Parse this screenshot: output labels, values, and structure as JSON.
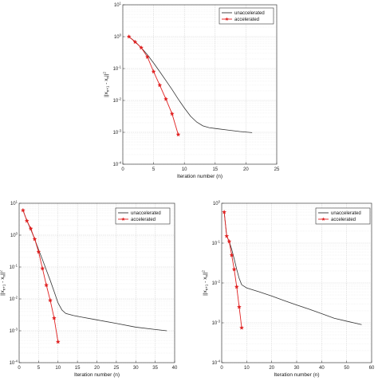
{
  "chart_data": [
    {
      "type": "line",
      "xlabel": "Iteration number (n)",
      "ylabel": "||x_{n+1} - x_n||^2",
      "yscale": "log",
      "xlim": [
        0,
        25
      ],
      "ylim_exp": [
        -4,
        1
      ],
      "xticks": [
        "0",
        "5",
        "10",
        "15",
        "20",
        "25"
      ],
      "yticks": [
        "10^{-4}",
        "10^{-3}",
        "10^{-2}",
        "10^{-1}",
        "10^{0}",
        "10^{1}"
      ],
      "grid": true,
      "legend_position": "top-right",
      "series": [
        {
          "name": "unaccelerated",
          "color": "#333333",
          "marker": "none",
          "x": [
            1,
            2,
            3,
            4,
            5,
            6,
            7,
            8,
            9,
            10,
            11,
            12,
            13,
            14,
            15,
            17,
            19,
            21
          ],
          "y": [
            1.0,
            0.7,
            0.45,
            0.27,
            0.15,
            0.08,
            0.042,
            0.022,
            0.011,
            0.0058,
            0.0032,
            0.0021,
            0.0016,
            0.0014,
            0.00132,
            0.00118,
            0.00106,
            0.00098
          ]
        },
        {
          "name": "accelerated",
          "color": "#e02020",
          "marker": "star",
          "x": [
            1,
            2,
            3,
            4,
            5,
            6,
            7,
            8,
            9
          ],
          "y": [
            1.0,
            0.68,
            0.45,
            0.23,
            0.08,
            0.03,
            0.011,
            0.0038,
            0.00085
          ]
        }
      ]
    },
    {
      "type": "line",
      "xlabel": "Iteration number (n)",
      "ylabel": "||x_{n+1} - x_n||^2",
      "yscale": "log",
      "xlim": [
        0,
        40
      ],
      "ylim_exp": [
        -4,
        1
      ],
      "xticks": [
        "0",
        "5",
        "10",
        "15",
        "20",
        "25",
        "30",
        "35",
        "40"
      ],
      "yticks": [
        "10^{-4}",
        "10^{-3}",
        "10^{-2}",
        "10^{-1}",
        "10^{0}",
        "10^{1}"
      ],
      "grid": true,
      "legend_position": "top-right",
      "series": [
        {
          "name": "unaccelerated",
          "color": "#333333",
          "marker": "none",
          "x": [
            1,
            2,
            3,
            4,
            5,
            6,
            7,
            8,
            9,
            10,
            11,
            12,
            14,
            16,
            20,
            25,
            30,
            35,
            38
          ],
          "y": [
            6.0,
            2.8,
            1.5,
            0.75,
            0.35,
            0.17,
            0.08,
            0.038,
            0.017,
            0.0075,
            0.0045,
            0.0035,
            0.003,
            0.0027,
            0.0022,
            0.0017,
            0.0013,
            0.0011,
            0.001
          ]
        },
        {
          "name": "accelerated",
          "color": "#e02020",
          "marker": "star",
          "x": [
            1,
            2,
            3,
            4,
            5,
            6,
            7,
            8,
            9,
            10
          ],
          "y": [
            6.0,
            2.8,
            1.6,
            0.75,
            0.3,
            0.09,
            0.027,
            0.009,
            0.0025,
            0.00045
          ]
        }
      ]
    },
    {
      "type": "line",
      "xlabel": "Iteration number (n)",
      "ylabel": "||x_{n+1} - x_n||^2",
      "yscale": "log",
      "xlim": [
        0,
        60
      ],
      "ylim_exp": [
        -4,
        0
      ],
      "xticks": [
        "0",
        "10",
        "20",
        "30",
        "40",
        "50",
        "60"
      ],
      "yticks": [
        "10^{-4}",
        "10^{-3}",
        "10^{-2}",
        "10^{-1}",
        "10^{0}"
      ],
      "grid": true,
      "legend_position": "top-right",
      "series": [
        {
          "name": "unaccelerated",
          "color": "#333333",
          "marker": "none",
          "x": [
            1,
            2,
            3,
            4,
            5,
            6,
            7,
            8,
            10,
            15,
            20,
            25,
            30,
            35,
            40,
            45,
            50,
            56
          ],
          "y": [
            0.6,
            0.15,
            0.11,
            0.07,
            0.04,
            0.022,
            0.013,
            0.009,
            0.0075,
            0.006,
            0.0047,
            0.0036,
            0.0028,
            0.0022,
            0.0017,
            0.0013,
            0.0011,
            0.0009
          ]
        },
        {
          "name": "accelerated",
          "color": "#e02020",
          "marker": "star",
          "x": [
            1,
            2,
            3,
            4,
            5,
            6,
            7,
            8
          ],
          "y": [
            0.6,
            0.15,
            0.11,
            0.05,
            0.022,
            0.008,
            0.0025,
            0.00075
          ]
        }
      ]
    }
  ]
}
